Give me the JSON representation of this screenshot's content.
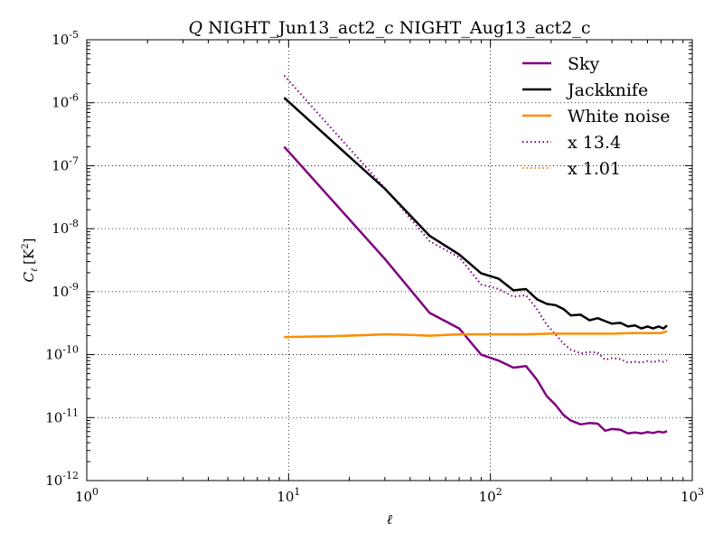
{
  "chart_data": {
    "type": "line",
    "title": "Q NIGHT_Jun13_act2_c NIGHT_Aug13_act2_c",
    "title_prefix": "Q",
    "title_rest": " NIGHT_Jun13_act2_c NIGHT_Aug13_act2_c",
    "xlabel": "ℓ",
    "ylabel_main": "C",
    "ylabel_sub": "ℓ",
    "ylabel_unit": "[K",
    "ylabel_unit_sup": "2",
    "ylabel_unit_end": "]",
    "x_scale": "log",
    "y_scale": "log",
    "xlim": [
      1,
      1000
    ],
    "ylim": [
      1e-12,
      1e-05
    ],
    "grid": true,
    "grid_style": "dotted",
    "legend_position": "top-right",
    "x_ticks": [
      {
        "value": 1,
        "base": "10",
        "exp": "0"
      },
      {
        "value": 10,
        "base": "10",
        "exp": "1"
      },
      {
        "value": 100,
        "base": "10",
        "exp": "2"
      },
      {
        "value": 1000,
        "base": "10",
        "exp": "3"
      }
    ],
    "y_ticks": [
      {
        "value": 1e-12,
        "base": "10",
        "exp": "-12"
      },
      {
        "value": 1e-11,
        "base": "10",
        "exp": "-11"
      },
      {
        "value": 1e-10,
        "base": "10",
        "exp": "-10"
      },
      {
        "value": 1e-09,
        "base": "10",
        "exp": "-9"
      },
      {
        "value": 1e-08,
        "base": "10",
        "exp": "-8"
      },
      {
        "value": 1e-07,
        "base": "10",
        "exp": "-7"
      },
      {
        "value": 1e-06,
        "base": "10",
        "exp": "-6"
      },
      {
        "value": 1e-05,
        "base": "10",
        "exp": "-5"
      }
    ],
    "series": [
      {
        "name": "Sky",
        "color": "#800080",
        "style": "solid",
        "points": [
          [
            9.5,
            2e-07
          ],
          [
            30,
            3.3e-09
          ],
          [
            50,
            4.6e-10
          ],
          [
            70,
            2.6e-10
          ],
          [
            90,
            1e-10
          ],
          [
            110,
            8e-11
          ],
          [
            130,
            6.2e-11
          ],
          [
            150,
            6.6e-11
          ],
          [
            170,
            4e-11
          ],
          [
            190,
            2.2e-11
          ],
          [
            210,
            1.6e-11
          ],
          [
            230,
            1.1e-11
          ],
          [
            250,
            9e-12
          ],
          [
            280,
            7.8e-12
          ],
          [
            310,
            8.2e-12
          ],
          [
            340,
            8e-12
          ],
          [
            370,
            6.2e-12
          ],
          [
            400,
            6.6e-12
          ],
          [
            440,
            6.4e-12
          ],
          [
            480,
            5.6e-12
          ],
          [
            520,
            5.8e-12
          ],
          [
            560,
            5.6e-12
          ],
          [
            600,
            5.9e-12
          ],
          [
            640,
            5.7e-12
          ],
          [
            680,
            6e-12
          ],
          [
            720,
            5.8e-12
          ],
          [
            750,
            6.1e-12
          ]
        ]
      },
      {
        "name": "Jackknife",
        "color": "#000000",
        "style": "solid",
        "points": [
          [
            9.5,
            1.2e-06
          ],
          [
            30,
            4.3e-08
          ],
          [
            50,
            7.7e-09
          ],
          [
            70,
            3.9e-09
          ],
          [
            90,
            1.95e-09
          ],
          [
            110,
            1.6e-09
          ],
          [
            130,
            1.05e-09
          ],
          [
            150,
            1.1e-09
          ],
          [
            170,
            7.6e-10
          ],
          [
            190,
            6.4e-10
          ],
          [
            210,
            6.1e-10
          ],
          [
            230,
            5.3e-10
          ],
          [
            250,
            4.2e-10
          ],
          [
            280,
            4.3e-10
          ],
          [
            310,
            3.5e-10
          ],
          [
            340,
            3.8e-10
          ],
          [
            370,
            3.4e-10
          ],
          [
            400,
            3.1e-10
          ],
          [
            440,
            3.2e-10
          ],
          [
            480,
            2.8e-10
          ],
          [
            520,
            2.9e-10
          ],
          [
            560,
            2.6e-10
          ],
          [
            600,
            2.8e-10
          ],
          [
            640,
            2.6e-10
          ],
          [
            680,
            2.8e-10
          ],
          [
            720,
            2.6e-10
          ],
          [
            750,
            2.9e-10
          ]
        ]
      },
      {
        "name": "White noise",
        "color": "#ff8c00",
        "style": "solid",
        "points": [
          [
            9.5,
            1.9e-10
          ],
          [
            15,
            1.95e-10
          ],
          [
            20,
            2e-10
          ],
          [
            30,
            2.1e-10
          ],
          [
            40,
            2.05e-10
          ],
          [
            50,
            2e-10
          ],
          [
            70,
            2.1e-10
          ],
          [
            100,
            2.1e-10
          ],
          [
            150,
            2.1e-10
          ],
          [
            200,
            2.15e-10
          ],
          [
            300,
            2.15e-10
          ],
          [
            400,
            2.15e-10
          ],
          [
            500,
            2.2e-10
          ],
          [
            600,
            2.2e-10
          ],
          [
            700,
            2.2e-10
          ],
          [
            750,
            2.35e-10
          ]
        ]
      },
      {
        "name": "x 13.4",
        "color": "#800080",
        "style": "dotted",
        "points": [
          [
            9.5,
            2.7e-06
          ],
          [
            30,
            4.4e-08
          ],
          [
            50,
            6.3e-09
          ],
          [
            70,
            3.5e-09
          ],
          [
            90,
            1.3e-09
          ],
          [
            110,
            1.1e-09
          ],
          [
            130,
            8.3e-10
          ],
          [
            150,
            8.8e-10
          ],
          [
            170,
            5.3e-10
          ],
          [
            190,
            3e-10
          ],
          [
            210,
            2.1e-10
          ],
          [
            230,
            1.5e-10
          ],
          [
            250,
            1.2e-10
          ],
          [
            280,
            1.05e-10
          ],
          [
            310,
            1.1e-10
          ],
          [
            340,
            1.07e-10
          ],
          [
            370,
            8.3e-11
          ],
          [
            400,
            8.8e-11
          ],
          [
            440,
            8.5e-11
          ],
          [
            480,
            7.5e-11
          ],
          [
            520,
            7.7e-11
          ],
          [
            560,
            7.5e-11
          ],
          [
            600,
            7.9e-11
          ],
          [
            640,
            7.6e-11
          ],
          [
            680,
            8e-11
          ],
          [
            720,
            7.7e-11
          ],
          [
            750,
            8.1e-11
          ]
        ]
      },
      {
        "name": "x 1.01",
        "color": "#ff8c00",
        "style": "dotted",
        "points": [
          [
            9.5,
            1.92e-10
          ],
          [
            15,
            1.97e-10
          ],
          [
            20,
            2.02e-10
          ],
          [
            30,
            2.12e-10
          ],
          [
            40,
            2.07e-10
          ],
          [
            50,
            2.02e-10
          ],
          [
            70,
            2.12e-10
          ],
          [
            100,
            2.12e-10
          ],
          [
            150,
            2.12e-10
          ],
          [
            200,
            2.17e-10
          ],
          [
            300,
            2.17e-10
          ],
          [
            400,
            2.17e-10
          ],
          [
            500,
            2.22e-10
          ],
          [
            600,
            2.22e-10
          ],
          [
            700,
            2.22e-10
          ],
          [
            750,
            2.37e-10
          ]
        ]
      }
    ]
  }
}
